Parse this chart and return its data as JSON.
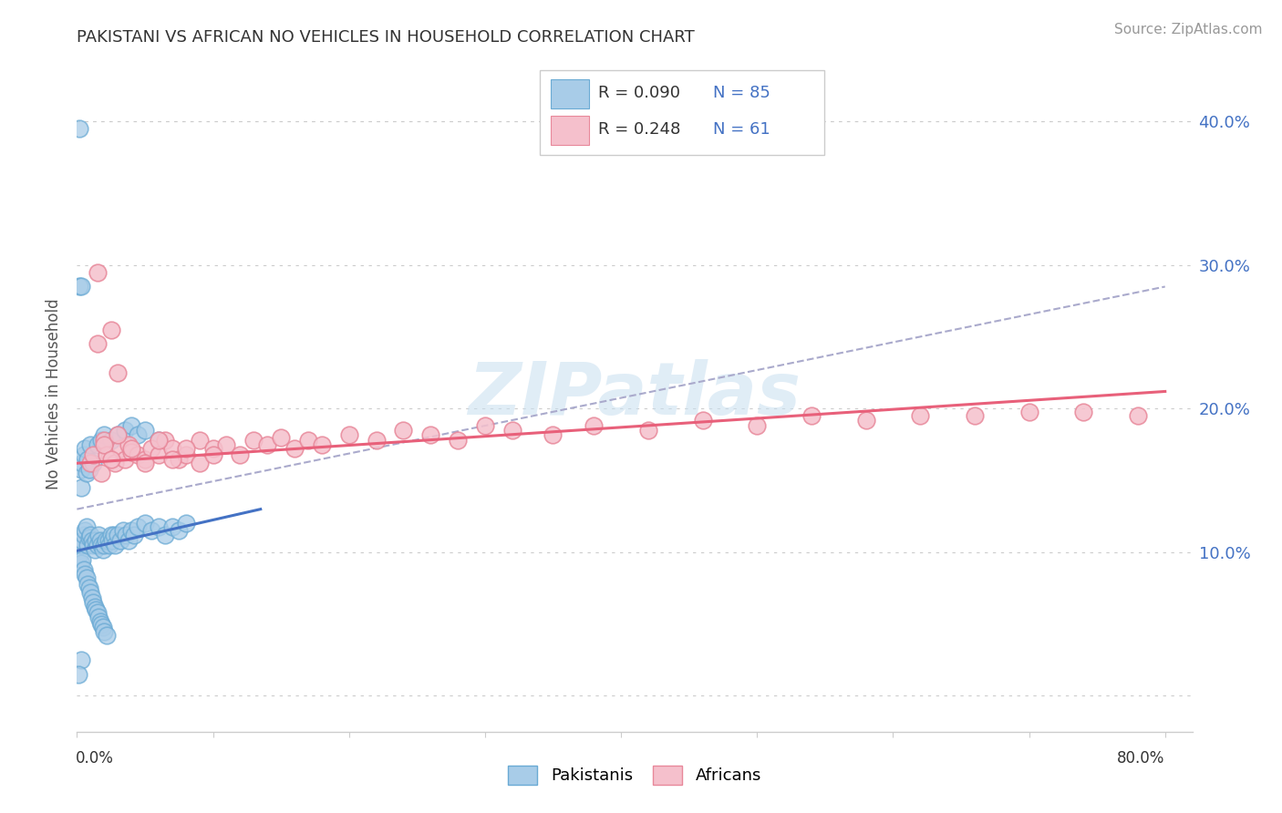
{
  "title": "PAKISTANI VS AFRICAN NO VEHICLES IN HOUSEHOLD CORRELATION CHART",
  "source": "Source: ZipAtlas.com",
  "ylabel": "No Vehicles in Household",
  "xlim": [
    0.0,
    0.82
  ],
  "ylim": [
    -0.025,
    0.445
  ],
  "yticks": [
    0.0,
    0.1,
    0.2,
    0.3,
    0.4
  ],
  "ytick_labels_right": [
    "",
    "10.0%",
    "20.0%",
    "30.0%",
    "40.0%"
  ],
  "blue_scatter_color": "#A8CCE8",
  "blue_scatter_edge": "#6AAAD4",
  "pink_scatter_color": "#F5C0CC",
  "pink_scatter_edge": "#E8889A",
  "blue_line_color": "#4472C4",
  "pink_line_color": "#E8607A",
  "dashed_line_color": "#AAAACC",
  "watermark_text": "ZIPatlas",
  "watermark_color": "#C8DFF0",
  "legend_r1": "R = 0.090",
  "legend_n1": "N = 85",
  "legend_r2": "R = 0.248",
  "legend_n2": "N = 61",
  "pak_line_x": [
    0.0,
    0.135
  ],
  "pak_line_y": [
    0.101,
    0.13
  ],
  "afr_line_x": [
    0.0,
    0.8
  ],
  "afr_line_y": [
    0.162,
    0.212
  ],
  "dash_line_x": [
    0.0,
    0.8
  ],
  "dash_line_y": [
    0.13,
    0.285
  ],
  "pakistanis_x": [
    0.002,
    0.003,
    0.003,
    0.004,
    0.004,
    0.005,
    0.005,
    0.006,
    0.006,
    0.007,
    0.007,
    0.008,
    0.008,
    0.009,
    0.009,
    0.01,
    0.01,
    0.011,
    0.011,
    0.012,
    0.012,
    0.013,
    0.013,
    0.014,
    0.014,
    0.015,
    0.015,
    0.016,
    0.016,
    0.017,
    0.017,
    0.018,
    0.018,
    0.019,
    0.019,
    0.02,
    0.02,
    0.021,
    0.022,
    0.023,
    0.024,
    0.025,
    0.026,
    0.027,
    0.028,
    0.03,
    0.032,
    0.034,
    0.036,
    0.038,
    0.04,
    0.042,
    0.045,
    0.05,
    0.055,
    0.06,
    0.065,
    0.07,
    0.075,
    0.08,
    0.003,
    0.003,
    0.004,
    0.005,
    0.006,
    0.007,
    0.008,
    0.009,
    0.01,
    0.012,
    0.015,
    0.018,
    0.02,
    0.025,
    0.03,
    0.035,
    0.04,
    0.045,
    0.05,
    0.06,
    0.002,
    0.002,
    0.003,
    0.003,
    0.001
  ],
  "pakistanis_y": [
    0.098,
    0.105,
    0.092,
    0.108,
    0.095,
    0.112,
    0.088,
    0.115,
    0.085,
    0.118,
    0.082,
    0.105,
    0.078,
    0.11,
    0.075,
    0.112,
    0.072,
    0.108,
    0.068,
    0.105,
    0.065,
    0.102,
    0.062,
    0.108,
    0.06,
    0.105,
    0.058,
    0.112,
    0.055,
    0.108,
    0.052,
    0.105,
    0.05,
    0.102,
    0.048,
    0.105,
    0.045,
    0.108,
    0.042,
    0.108,
    0.105,
    0.112,
    0.108,
    0.112,
    0.105,
    0.112,
    0.108,
    0.115,
    0.112,
    0.108,
    0.115,
    0.112,
    0.118,
    0.12,
    0.115,
    0.118,
    0.112,
    0.118,
    0.115,
    0.12,
    0.158,
    0.145,
    0.162,
    0.168,
    0.172,
    0.155,
    0.165,
    0.158,
    0.175,
    0.162,
    0.175,
    0.178,
    0.182,
    0.178,
    0.182,
    0.185,
    0.188,
    0.182,
    0.185,
    0.178,
    0.395,
    0.285,
    0.285,
    0.025,
    0.015
  ],
  "africans_x": [
    0.01,
    0.012,
    0.015,
    0.018,
    0.02,
    0.022,
    0.025,
    0.028,
    0.03,
    0.032,
    0.035,
    0.038,
    0.04,
    0.045,
    0.05,
    0.055,
    0.06,
    0.065,
    0.07,
    0.075,
    0.08,
    0.09,
    0.1,
    0.11,
    0.12,
    0.13,
    0.14,
    0.15,
    0.16,
    0.17,
    0.18,
    0.2,
    0.22,
    0.24,
    0.26,
    0.28,
    0.3,
    0.32,
    0.35,
    0.38,
    0.42,
    0.46,
    0.5,
    0.54,
    0.58,
    0.62,
    0.66,
    0.7,
    0.74,
    0.78,
    0.015,
    0.02,
    0.025,
    0.03,
    0.04,
    0.05,
    0.06,
    0.07,
    0.08,
    0.09,
    0.1
  ],
  "africans_y": [
    0.162,
    0.168,
    0.245,
    0.155,
    0.178,
    0.168,
    0.255,
    0.162,
    0.225,
    0.172,
    0.165,
    0.175,
    0.17,
    0.168,
    0.165,
    0.172,
    0.168,
    0.178,
    0.172,
    0.165,
    0.168,
    0.178,
    0.172,
    0.175,
    0.168,
    0.178,
    0.175,
    0.18,
    0.172,
    0.178,
    0.175,
    0.182,
    0.178,
    0.185,
    0.182,
    0.178,
    0.188,
    0.185,
    0.182,
    0.188,
    0.185,
    0.192,
    0.188,
    0.195,
    0.192,
    0.195,
    0.195,
    0.198,
    0.198,
    0.195,
    0.295,
    0.175,
    0.165,
    0.182,
    0.172,
    0.162,
    0.178,
    0.165,
    0.172,
    0.162,
    0.168
  ]
}
